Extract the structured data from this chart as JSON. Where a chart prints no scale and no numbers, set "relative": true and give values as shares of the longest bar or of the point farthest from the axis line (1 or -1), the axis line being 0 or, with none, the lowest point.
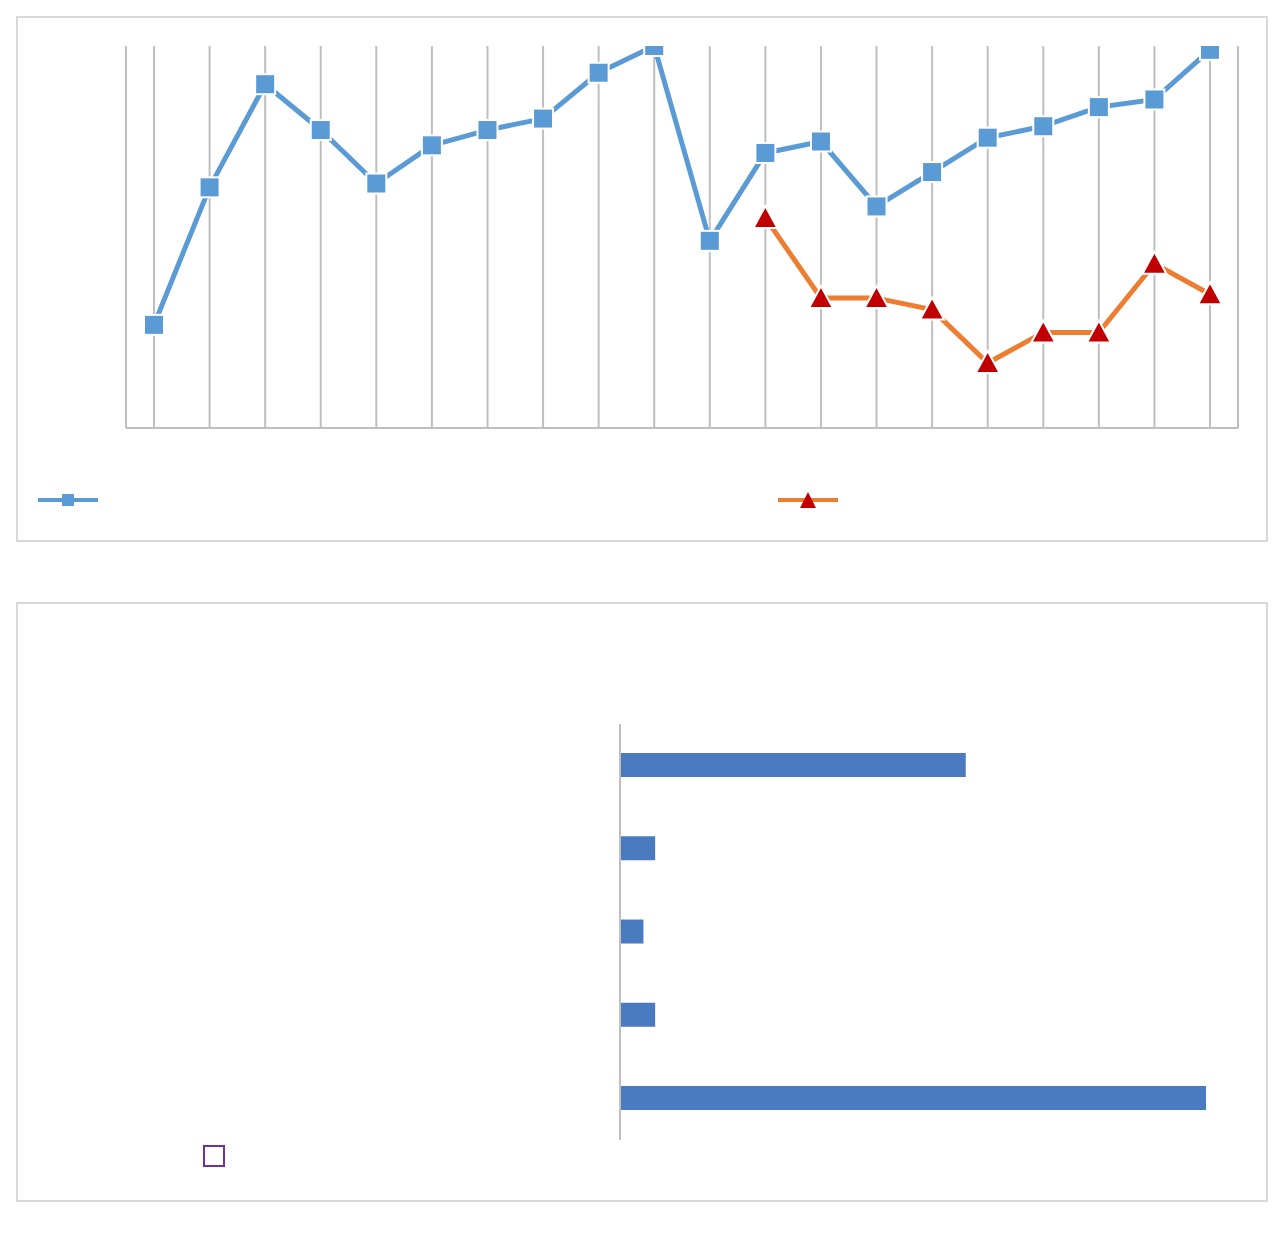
{
  "chart_data": [
    {
      "type": "line",
      "relative": true,
      "categories": [
        null,
        null,
        null,
        null,
        null,
        null,
        null,
        null,
        null,
        null,
        null,
        null,
        null,
        null,
        null,
        null,
        null,
        null,
        null,
        null
      ],
      "grid": "x",
      "series": [
        {
          "color": "#5b9bd5",
          "marker": "square",
          "values": [
            0.27,
            0.63,
            0.9,
            0.78,
            0.64,
            0.74,
            0.78,
            0.81,
            0.93,
            1,
            0.49,
            0.72,
            0.75,
            0.58,
            0.67,
            0.76,
            0.79,
            0.84,
            0.86,
            0.99
          ]
        },
        {
          "color": "#ed7d31",
          "marker": "triangle",
          "values": [
            null,
            null,
            null,
            null,
            null,
            null,
            null,
            null,
            null,
            null,
            null,
            0.55,
            0.34,
            0.34,
            0.31,
            0.17,
            0.25,
            0.25,
            0.43,
            0.35
          ]
        }
      ]
    },
    {
      "type": "bar",
      "orientation": "horizontal",
      "relative": true,
      "categories": [
        null,
        null,
        null,
        null,
        null
      ],
      "values": [
        0.59,
        0.06,
        0.04,
        0.06,
        1
      ],
      "color": "#4a7bc0"
    }
  ]
}
